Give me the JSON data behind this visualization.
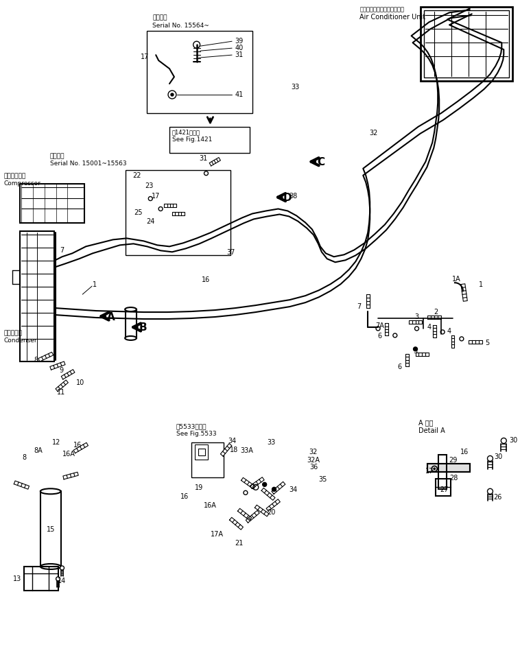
{
  "bg_color": "#ffffff",
  "fig_width": 7.58,
  "fig_height": 9.53,
  "ann": {
    "air_cond_jp": "エアコンディショナユニット",
    "air_cond_en": "Air Conditioner Unit",
    "compressor_jp": "コンプレッサ",
    "compressor_en": "Compressor",
    "condenser_jp": "コンデンサ",
    "condenser_en": "Condenser",
    "app_jp": "適用号機",
    "serial_15564": "Serial No. 15564~",
    "serial_15001": "Serial No. 15001~15563",
    "see_fig1421_jp": "前1421図参照",
    "see_fig1421_en": "See Fig.1421",
    "see_fig5533_jp": "前5533図参照",
    "see_fig5533_en": "See Fig.5533",
    "detail_a_jp": "A 詳図",
    "detail_a_en": "Detail A"
  }
}
